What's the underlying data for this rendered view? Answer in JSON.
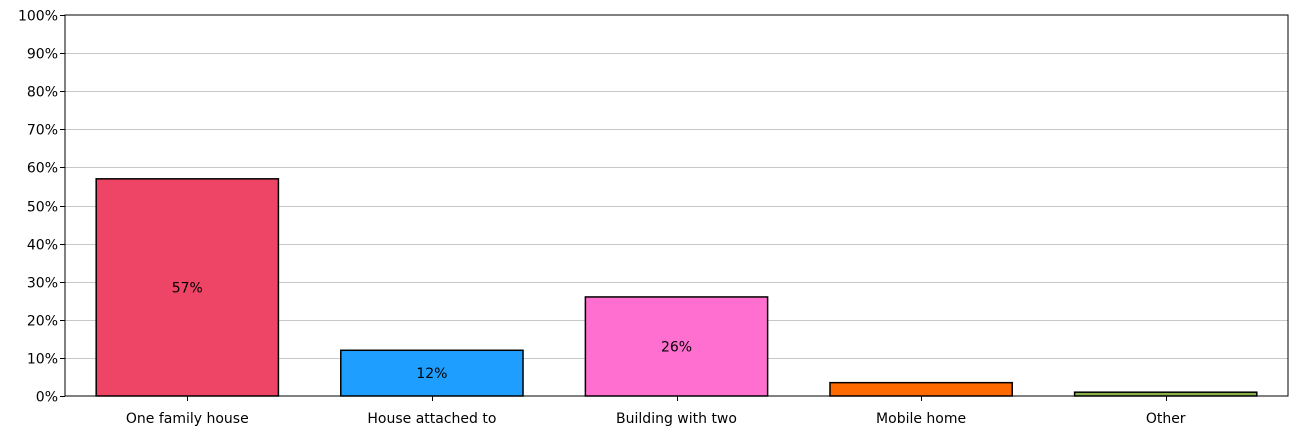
{
  "chart_data": {
    "type": "bar",
    "categories": [
      "One family house",
      "House attached to",
      "Building with two",
      "Mobile home",
      "Other"
    ],
    "values": [
      57,
      12,
      26,
      3.5,
      1
    ],
    "data_labels": [
      "57%",
      "12%",
      "26%",
      "",
      ""
    ],
    "colors": [
      "#ee4466",
      "#1e9fff",
      "#ff6fcf",
      "#ff6a00",
      "#88b04b"
    ],
    "ylim": [
      0,
      100
    ],
    "y_ticks": [
      0,
      10,
      20,
      30,
      40,
      50,
      60,
      70,
      80,
      90,
      100
    ],
    "y_tick_labels": [
      "0%",
      "10%",
      "20%",
      "30%",
      "40%",
      "50%",
      "60%",
      "70%",
      "80%",
      "90%",
      "100%"
    ],
    "grid": true,
    "title": "",
    "xlabel": "",
    "ylabel": ""
  }
}
